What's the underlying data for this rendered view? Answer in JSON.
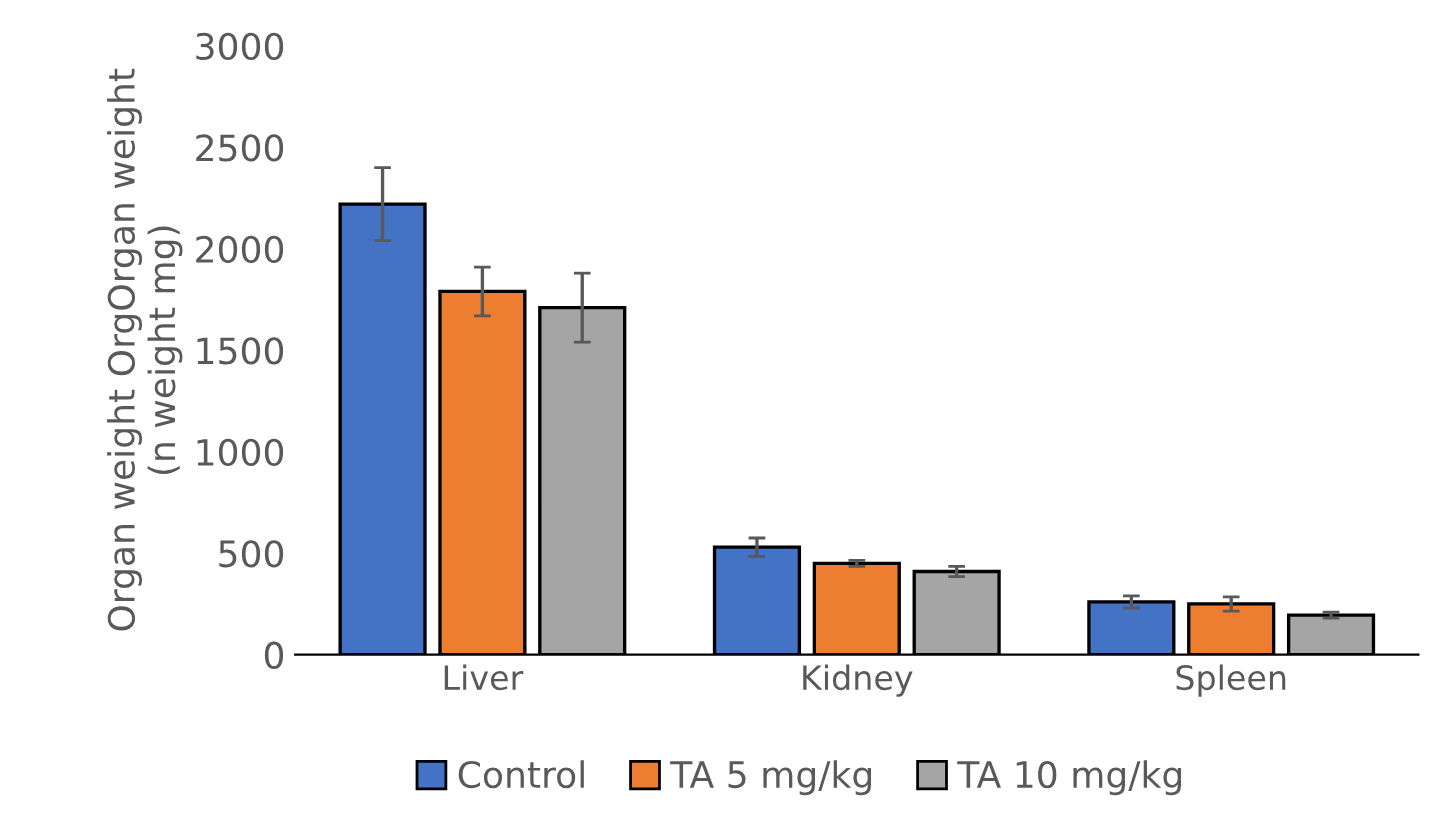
{
  "chart_data": {
    "type": "bar",
    "ylabel": "Organ weight OrgOrgan weight\n(n weight mg)",
    "categories": [
      "Liver",
      "Kidney",
      "Spleen"
    ],
    "series": [
      {
        "name": "Control",
        "color": "#4472c4",
        "values": [
          2220,
          530,
          260
        ],
        "errors": [
          180,
          45,
          30
        ]
      },
      {
        "name": "TA 5 mg/kg",
        "color": "#ed7d31",
        "values": [
          1790,
          450,
          250
        ],
        "errors": [
          120,
          15,
          35
        ]
      },
      {
        "name": "TA 10 mg/kg",
        "color": "#a5a5a5",
        "values": [
          1710,
          410,
          195
        ],
        "errors": [
          170,
          25,
          15
        ]
      }
    ],
    "ylim": [
      0,
      3000
    ],
    "yticks": [
      0,
      500,
      1000,
      1500,
      2000,
      2500,
      3000
    ],
    "grid": false,
    "legend": "bottom"
  }
}
